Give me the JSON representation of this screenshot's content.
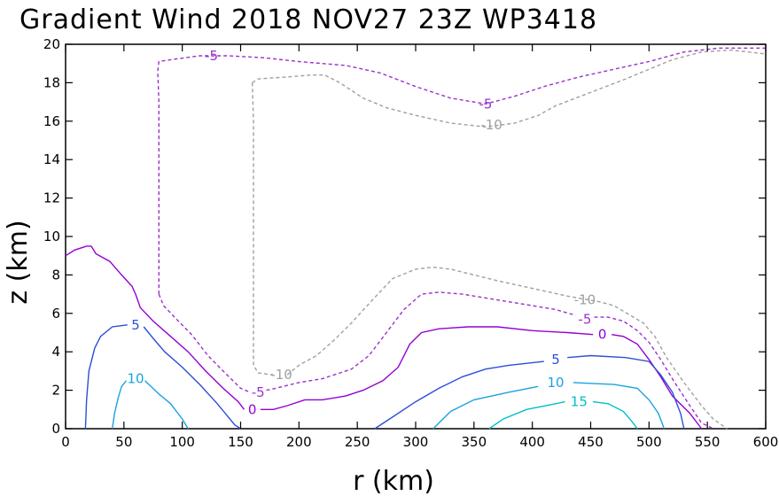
{
  "chart_data": {
    "type": "contour",
    "title": "Gradient Wind 2018 NOV27 23Z   WP3418",
    "xlabel": "r (km)",
    "ylabel": "z (km)",
    "xlim": [
      0,
      600
    ],
    "ylim": [
      0,
      20
    ],
    "xticks": [
      0,
      50,
      100,
      150,
      200,
      250,
      300,
      350,
      400,
      450,
      500,
      550,
      600
    ],
    "yticks": [
      0,
      2,
      4,
      6,
      8,
      10,
      12,
      14,
      16,
      18,
      20
    ],
    "grid": false,
    "contours": [
      {
        "level": -10,
        "color": "#a0a0a0",
        "dashed": true,
        "labels": [
          {
            "text": "-10",
            "x": 185,
            "y": 2.8
          },
          {
            "text": "-10",
            "x": 365,
            "y": 15.8
          },
          {
            "text": "-10",
            "x": 445,
            "y": 6.7
          }
        ],
        "paths": [
          [
            [
              160,
              18.0
            ],
            [
              165,
              18.2
            ],
            [
              190,
              18.3
            ],
            [
              210,
              18.4
            ],
            [
              222,
              18.4
            ],
            [
              235,
              18.0
            ],
            [
              255,
              17.2
            ],
            [
              275,
              16.7
            ],
            [
              300,
              16.3
            ],
            [
              330,
              15.9
            ],
            [
              360,
              15.7
            ],
            [
              385,
              15.9
            ],
            [
              405,
              16.3
            ],
            [
              420,
              16.8
            ],
            [
              450,
              17.5
            ],
            [
              480,
              18.2
            ],
            [
              500,
              18.7
            ],
            [
              520,
              19.2
            ],
            [
              545,
              19.6
            ],
            [
              570,
              19.7
            ],
            [
              600,
              19.5
            ]
          ],
          [
            [
              160,
              18.0
            ],
            [
              161,
              16.0
            ],
            [
              161,
              12.0
            ],
            [
              161,
              8.0
            ],
            [
              161,
              5.0
            ],
            [
              161,
              3.3
            ],
            [
              165,
              2.9
            ],
            [
              178,
              2.8
            ]
          ],
          [
            [
              190,
              2.8
            ],
            [
              200,
              3.3
            ],
            [
              215,
              3.8
            ],
            [
              230,
              4.6
            ],
            [
              245,
              5.5
            ],
            [
              260,
              6.5
            ],
            [
              280,
              7.8
            ],
            [
              300,
              8.3
            ],
            [
              315,
              8.4
            ],
            [
              330,
              8.3
            ],
            [
              350,
              8.0
            ],
            [
              370,
              7.7
            ],
            [
              400,
              7.3
            ],
            [
              430,
              6.9
            ],
            [
              458,
              6.6
            ],
            [
              470,
              6.4
            ],
            [
              495,
              5.5
            ],
            [
              505,
              4.8
            ],
            [
              515,
              3.7
            ],
            [
              530,
              2.4
            ],
            [
              545,
              1.2
            ],
            [
              555,
              0.5
            ],
            [
              567,
              0.0
            ]
          ]
        ]
      },
      {
        "level": -5,
        "color": "#9932cc",
        "dashed": true,
        "labels": [
          {
            "text": "-5",
            "x": 125,
            "y": 19.4
          },
          {
            "text": "-5",
            "x": 360,
            "y": 16.9
          },
          {
            "text": "-5",
            "x": 165,
            "y": 1.9
          },
          {
            "text": "-5",
            "x": 445,
            "y": 5.7
          }
        ],
        "paths": [
          [
            [
              80,
              7.0
            ],
            [
              80,
              10.0
            ],
            [
              80,
              14.0
            ],
            [
              80,
              17.0
            ],
            [
              79,
              18.6
            ],
            [
              80,
              19.1
            ],
            [
              90,
              19.2
            ],
            [
              115,
              19.4
            ],
            [
              140,
              19.4
            ],
            [
              170,
              19.3
            ],
            [
              200,
              19.1
            ],
            [
              240,
              18.9
            ],
            [
              270,
              18.5
            ],
            [
              300,
              17.8
            ],
            [
              330,
              17.2
            ],
            [
              360,
              16.9
            ],
            [
              385,
              17.3
            ],
            [
              410,
              17.8
            ],
            [
              440,
              18.3
            ],
            [
              470,
              18.7
            ],
            [
              500,
              19.1
            ],
            [
              530,
              19.6
            ],
            [
              560,
              19.8
            ],
            [
              600,
              19.8
            ]
          ],
          [
            [
              80,
              7.0
            ],
            [
              84,
              6.4
            ],
            [
              95,
              5.7
            ],
            [
              108,
              4.9
            ],
            [
              122,
              3.8
            ],
            [
              135,
              3.0
            ],
            [
              150,
              2.1
            ],
            [
              158,
              1.9
            ]
          ],
          [
            [
              172,
              2.0
            ],
            [
              180,
              2.1
            ],
            [
              200,
              2.4
            ],
            [
              220,
              2.6
            ],
            [
              245,
              3.1
            ],
            [
              260,
              3.8
            ],
            [
              275,
              5.0
            ],
            [
              290,
              6.2
            ],
            [
              305,
              7.0
            ],
            [
              320,
              7.1
            ],
            [
              340,
              7.0
            ],
            [
              360,
              6.8
            ],
            [
              390,
              6.5
            ],
            [
              420,
              6.2
            ],
            [
              437,
              5.9
            ]
          ],
          [
            [
              453,
              5.8
            ],
            [
              465,
              5.8
            ],
            [
              478,
              5.6
            ],
            [
              490,
              5.1
            ],
            [
              500,
              4.5
            ],
            [
              510,
              3.6
            ],
            [
              522,
              2.4
            ],
            [
              535,
              1.2
            ],
            [
              545,
              0.3
            ],
            [
              555,
              0.0
            ]
          ]
        ]
      },
      {
        "level": 0,
        "color": "#9400d3",
        "dashed": false,
        "labels": [
          {
            "text": "0",
            "x": 160,
            "y": 1.0
          },
          {
            "text": "0",
            "x": 460,
            "y": 4.9
          }
        ],
        "paths": [
          [
            [
              0,
              9.0
            ],
            [
              8,
              9.3
            ],
            [
              18,
              9.5
            ],
            [
              22,
              9.5
            ],
            [
              26,
              9.1
            ],
            [
              38,
              8.7
            ],
            [
              48,
              8.0
            ],
            [
              57,
              7.4
            ],
            [
              60,
              7.0
            ],
            [
              64,
              6.3
            ],
            [
              75,
              5.6
            ],
            [
              90,
              4.8
            ],
            [
              105,
              4.0
            ],
            [
              120,
              3.0
            ],
            [
              135,
              2.1
            ],
            [
              148,
              1.4
            ],
            [
              153,
              1.0
            ]
          ],
          [
            [
              167,
              1.0
            ],
            [
              178,
              1.0
            ],
            [
              190,
              1.2
            ],
            [
              205,
              1.5
            ],
            [
              220,
              1.5
            ],
            [
              240,
              1.7
            ],
            [
              255,
              2.0
            ],
            [
              272,
              2.5
            ],
            [
              285,
              3.2
            ],
            [
              295,
              4.4
            ],
            [
              305,
              5.0
            ],
            [
              320,
              5.2
            ],
            [
              345,
              5.3
            ],
            [
              370,
              5.3
            ],
            [
              400,
              5.1
            ],
            [
              430,
              5.0
            ],
            [
              452,
              4.9
            ]
          ],
          [
            [
              468,
              4.9
            ],
            [
              478,
              4.8
            ],
            [
              490,
              4.4
            ],
            [
              500,
              3.6
            ],
            [
              510,
              2.7
            ],
            [
              520,
              1.7
            ],
            [
              535,
              0.8
            ],
            [
              545,
              0.0
            ]
          ]
        ]
      },
      {
        "level": 5,
        "color": "#2b4fd9",
        "dashed": false,
        "labels": [
          {
            "text": "5",
            "x": 60,
            "y": 5.4
          },
          {
            "text": "5",
            "x": 420,
            "y": 3.6
          }
        ],
        "paths": [
          [
            [
              17,
              0.0
            ],
            [
              18,
              1.5
            ],
            [
              20,
              3.0
            ],
            [
              25,
              4.2
            ],
            [
              30,
              4.8
            ],
            [
              40,
              5.3
            ],
            [
              53,
              5.4
            ]
          ],
          [
            [
              67,
              5.3
            ],
            [
              75,
              4.7
            ],
            [
              85,
              4.0
            ],
            [
              100,
              3.2
            ],
            [
              115,
              2.3
            ],
            [
              130,
              1.3
            ],
            [
              145,
              0.2
            ],
            [
              150,
              0.0
            ]
          ],
          [
            [
              265,
              0.0
            ],
            [
              280,
              0.6
            ],
            [
              300,
              1.4
            ],
            [
              320,
              2.1
            ],
            [
              340,
              2.7
            ],
            [
              360,
              3.1
            ],
            [
              380,
              3.3
            ],
            [
              410,
              3.5
            ]
          ],
          [
            [
              430,
              3.7
            ],
            [
              450,
              3.8
            ],
            [
              480,
              3.7
            ],
            [
              500,
              3.5
            ],
            [
              510,
              2.8
            ],
            [
              520,
              1.9
            ],
            [
              527,
              0.8
            ],
            [
              530,
              0.0
            ]
          ]
        ]
      },
      {
        "level": 10,
        "color": "#1ca2e0",
        "dashed": false,
        "labels": [
          {
            "text": "10",
            "x": 60,
            "y": 2.6
          },
          {
            "text": "10",
            "x": 420,
            "y": 2.4
          }
        ],
        "paths": [
          [
            [
              40,
              0.0
            ],
            [
              42,
              0.8
            ],
            [
              45,
              1.6
            ],
            [
              48,
              2.2
            ],
            [
              52,
              2.5
            ]
          ],
          [
            [
              68,
              2.5
            ],
            [
              80,
              1.8
            ],
            [
              90,
              1.3
            ],
            [
              100,
              0.5
            ],
            [
              105,
              0.0
            ]
          ],
          [
            [
              315,
              0.0
            ],
            [
              330,
              0.9
            ],
            [
              350,
              1.5
            ],
            [
              380,
              1.9
            ],
            [
              405,
              2.2
            ]
          ],
          [
            [
              435,
              2.4
            ],
            [
              470,
              2.3
            ],
            [
              490,
              2.1
            ],
            [
              500,
              1.5
            ],
            [
              508,
              0.8
            ],
            [
              513,
              0.0
            ]
          ]
        ]
      },
      {
        "level": 15,
        "color": "#00c0c8",
        "dashed": false,
        "labels": [
          {
            "text": "15",
            "x": 440,
            "y": 1.4
          }
        ],
        "paths": [
          [
            [
              363,
              0.0
            ],
            [
              375,
              0.5
            ],
            [
              395,
              1.0
            ],
            [
              420,
              1.3
            ],
            [
              428,
              1.4
            ]
          ],
          [
            [
              452,
              1.4
            ],
            [
              465,
              1.3
            ],
            [
              478,
              0.9
            ],
            [
              485,
              0.4
            ],
            [
              490,
              0.0
            ]
          ]
        ]
      }
    ]
  }
}
